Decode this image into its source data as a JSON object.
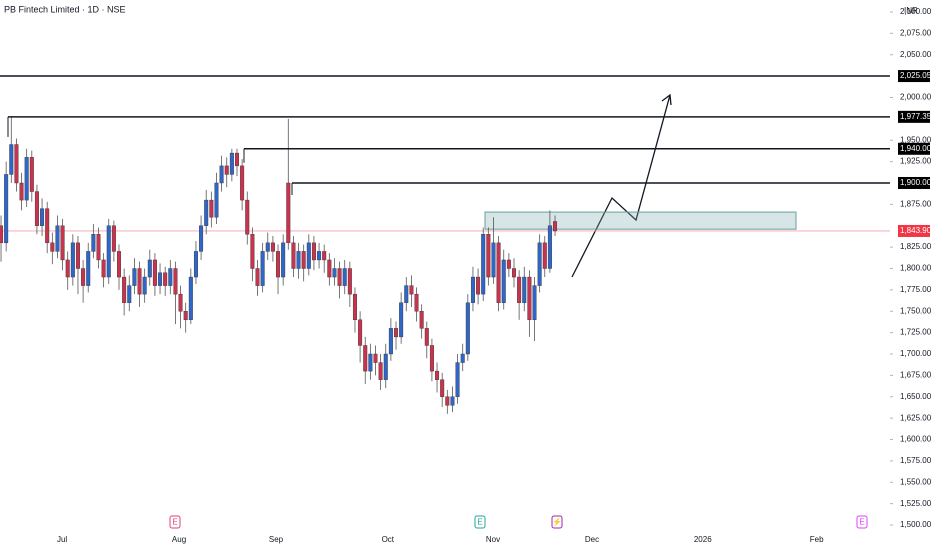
{
  "chart_data": {
    "type": "candlestick",
    "title": "PB Fintech Limited · 1D · NSE",
    "currency": "INR",
    "up_color": "#2f67c8",
    "down_color": "#c9334d",
    "ylim": [
      1470.8,
      2114
    ],
    "xlim": [
      -0.2,
      173.3
    ],
    "yticks": [
      {
        "value": 2100,
        "label": "2,100.00"
      },
      {
        "value": 2075,
        "label": "2,075.00"
      },
      {
        "value": 2050,
        "label": "2,050.00"
      },
      {
        "value": 2000,
        "label": "2,000.00"
      },
      {
        "value": 1950,
        "label": "1,950.00"
      },
      {
        "value": 1925,
        "label": "1,925.00"
      },
      {
        "value": 1875,
        "label": "1,875.00"
      },
      {
        "value": 1825,
        "label": "1,825.00"
      },
      {
        "value": 1800,
        "label": "1,800.00"
      },
      {
        "value": 1775,
        "label": "1,775.00"
      },
      {
        "value": 1750,
        "label": "1,750.00"
      },
      {
        "value": 1725,
        "label": "1,725.00"
      },
      {
        "value": 1700,
        "label": "1,700.00"
      },
      {
        "value": 1675,
        "label": "1,675.00"
      },
      {
        "value": 1650,
        "label": "1,650.00"
      },
      {
        "value": 1625,
        "label": "1,625.00"
      },
      {
        "value": 1600,
        "label": "1,600.00"
      },
      {
        "value": 1575,
        "label": "1,575.00"
      },
      {
        "value": 1550,
        "label": "1,550.00"
      },
      {
        "value": 1525,
        "label": "1,525.00"
      },
      {
        "value": 1500,
        "label": "1,500.00"
      }
    ],
    "xticks": [
      {
        "value": 11.9,
        "label": "Jul"
      },
      {
        "value": 34.7,
        "label": "Aug"
      },
      {
        "value": 53.6,
        "label": "Sep"
      },
      {
        "value": 75.4,
        "label": "Oct"
      },
      {
        "value": 95.9,
        "label": "Nov"
      },
      {
        "value": 115.2,
        "label": "Dec"
      },
      {
        "value": 136.8,
        "label": "2026"
      },
      {
        "value": 159,
        "label": "Feb"
      }
    ],
    "open": [
      1850,
      1830,
      1910,
      1945,
      1900,
      1880,
      1930,
      1890,
      1850,
      1870,
      1830,
      1820,
      1850,
      1810,
      1790,
      1830,
      1800,
      1780,
      1820,
      1840,
      1810,
      1790,
      1850,
      1820,
      1790,
      1760,
      1780,
      1800,
      1770,
      1790,
      1810,
      1780,
      1795,
      1780,
      1800,
      1770,
      1750,
      1740,
      1790,
      1820,
      1850,
      1880,
      1860,
      1900,
      1920,
      1910,
      1935,
      1920,
      1880,
      1840,
      1800,
      1780,
      1820,
      1830,
      1820,
      1790,
      1900,
      1830,
      1800,
      1820,
      1800,
      1830,
      1810,
      1820,
      1810,
      1790,
      1800,
      1780,
      1800,
      1770,
      1740,
      1710,
      1680,
      1700,
      1690,
      1670,
      1700,
      1730,
      1720,
      1760,
      1780,
      1770,
      1750,
      1730,
      1710,
      1680,
      1670,
      1650,
      1640,
      1650,
      1690,
      1700,
      1760,
      1790,
      1770,
      1840,
      1790,
      1830,
      1760,
      1810,
      1800,
      1790,
      1760,
      1790,
      1740,
      1780,
      1830,
      1800,
      1855
    ],
    "high": [
      1862,
      1925,
      1977,
      1952,
      1912,
      1940,
      1938,
      1898,
      1882,
      1878,
      1842,
      1862,
      1858,
      1820,
      1840,
      1838,
      1810,
      1830,
      1852,
      1848,
      1818,
      1858,
      1856,
      1828,
      1800,
      1792,
      1812,
      1808,
      1800,
      1822,
      1818,
      1806,
      1802,
      1810,
      1808,
      1780,
      1760,
      1800,
      1832,
      1862,
      1892,
      1890,
      1912,
      1932,
      1930,
      1940,
      1940,
      1928,
      1890,
      1848,
      1810,
      1830,
      1842,
      1838,
      1828,
      1840,
      1975,
      1838,
      1830,
      1828,
      1840,
      1838,
      1830,
      1828,
      1818,
      1812,
      1808,
      1810,
      1808,
      1778,
      1750,
      1720,
      1712,
      1710,
      1700,
      1712,
      1742,
      1738,
      1772,
      1790,
      1792,
      1778,
      1758,
      1738,
      1718,
      1690,
      1678,
      1658,
      1662,
      1700,
      1712,
      1770,
      1802,
      1800,
      1848,
      1848,
      1860,
      1838,
      1822,
      1818,
      1812,
      1798,
      1802,
      1798,
      1790,
      1840,
      1838,
      1868,
      1862
    ],
    "low": [
      1808,
      1820,
      1900,
      1890,
      1868,
      1872,
      1878,
      1840,
      1838,
      1818,
      1805,
      1812,
      1798,
      1775,
      1780,
      1770,
      1760,
      1772,
      1812,
      1800,
      1778,
      1782,
      1808,
      1775,
      1745,
      1750,
      1770,
      1755,
      1760,
      1780,
      1768,
      1770,
      1768,
      1770,
      1735,
      1730,
      1725,
      1735,
      1782,
      1810,
      1840,
      1848,
      1852,
      1890,
      1895,
      1902,
      1908,
      1868,
      1828,
      1785,
      1768,
      1772,
      1810,
      1808,
      1770,
      1780,
      1822,
      1790,
      1788,
      1785,
      1792,
      1798,
      1800,
      1795,
      1780,
      1780,
      1765,
      1770,
      1755,
      1725,
      1690,
      1665,
      1670,
      1675,
      1658,
      1660,
      1692,
      1705,
      1712,
      1750,
      1755,
      1738,
      1718,
      1695,
      1668,
      1655,
      1638,
      1630,
      1632,
      1642,
      1680,
      1692,
      1750,
      1758,
      1762,
      1780,
      1782,
      1750,
      1752,
      1790,
      1778,
      1740,
      1750,
      1720,
      1715,
      1772,
      1790,
      1795,
      1838
    ],
    "close": [
      1830,
      1910,
      1945,
      1900,
      1880,
      1930,
      1890,
      1850,
      1870,
      1830,
      1820,
      1850,
      1810,
      1790,
      1830,
      1800,
      1780,
      1820,
      1840,
      1810,
      1790,
      1850,
      1820,
      1790,
      1760,
      1780,
      1800,
      1770,
      1790,
      1810,
      1780,
      1795,
      1780,
      1800,
      1770,
      1750,
      1740,
      1790,
      1820,
      1850,
      1880,
      1860,
      1900,
      1920,
      1910,
      1935,
      1920,
      1880,
      1840,
      1800,
      1780,
      1820,
      1830,
      1820,
      1790,
      1830,
      1830,
      1800,
      1820,
      1800,
      1830,
      1810,
      1820,
      1810,
      1790,
      1800,
      1780,
      1800,
      1770,
      1740,
      1710,
      1680,
      1700,
      1690,
      1670,
      1700,
      1730,
      1720,
      1760,
      1780,
      1770,
      1750,
      1730,
      1710,
      1680,
      1670,
      1650,
      1640,
      1650,
      1690,
      1700,
      1760,
      1790,
      1770,
      1840,
      1790,
      1830,
      1760,
      1810,
      1800,
      1790,
      1760,
      1790,
      1740,
      1780,
      1830,
      1800,
      1850,
      1843.9
    ],
    "levels": [
      {
        "value": 2025.05,
        "label": "2,025.05"
      },
      {
        "value": 1977.35,
        "label": "1,977.35"
      },
      {
        "value": 1940,
        "label": "1,940.00"
      },
      {
        "value": 1900,
        "label": "1,900.00"
      }
    ],
    "last_price": {
      "value": 1843.9,
      "label": "1,843.90"
    },
    "zone": [
      1846,
      1866
    ],
    "events": [
      "E",
      "E",
      "⚡",
      "E"
    ]
  }
}
